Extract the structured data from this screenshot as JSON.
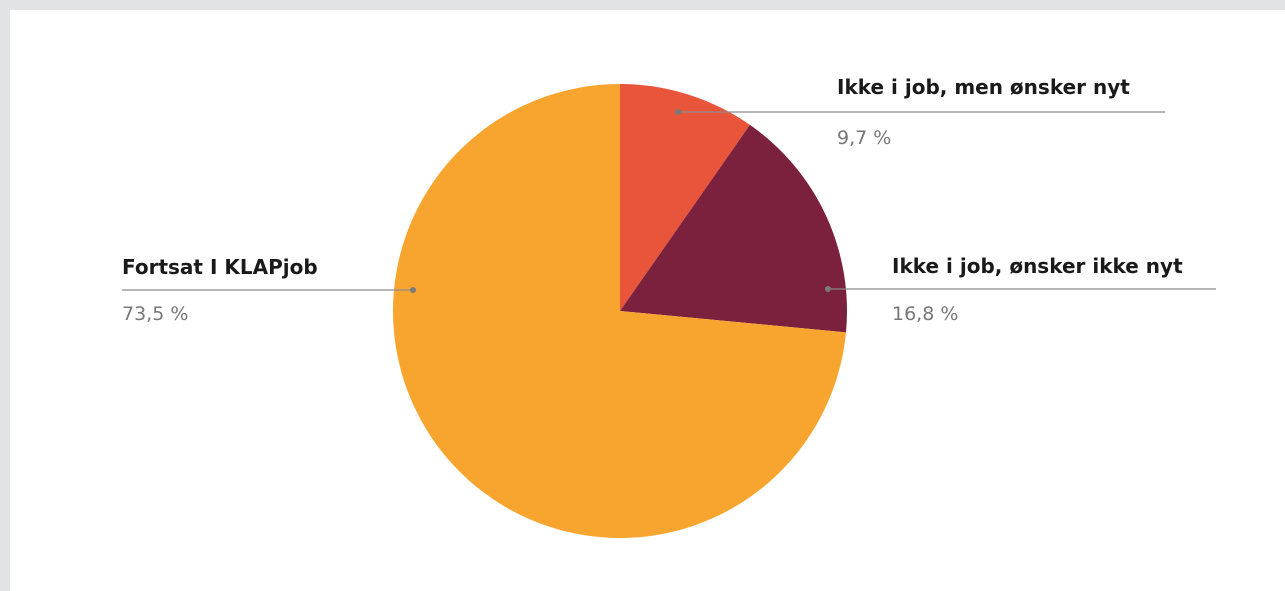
{
  "chart_data": {
    "type": "pie",
    "slices": [
      {
        "label": "Ikke i job, men ønsker nyt",
        "value": 9.7,
        "value_label": "9,7 %",
        "color": "#e8553a"
      },
      {
        "label": "Ikke i job, ønsker ikke nyt",
        "value": 16.8,
        "value_label": "16,8 %",
        "color": "#7b213d"
      },
      {
        "label": "Fortsat I KLAPjob",
        "value": 73.5,
        "value_label": "73,5 %",
        "color": "#f8a530"
      }
    ],
    "start_angle": "12 o'clock",
    "direction": "clockwise",
    "legend": "none",
    "labels": "outside with leader lines"
  }
}
